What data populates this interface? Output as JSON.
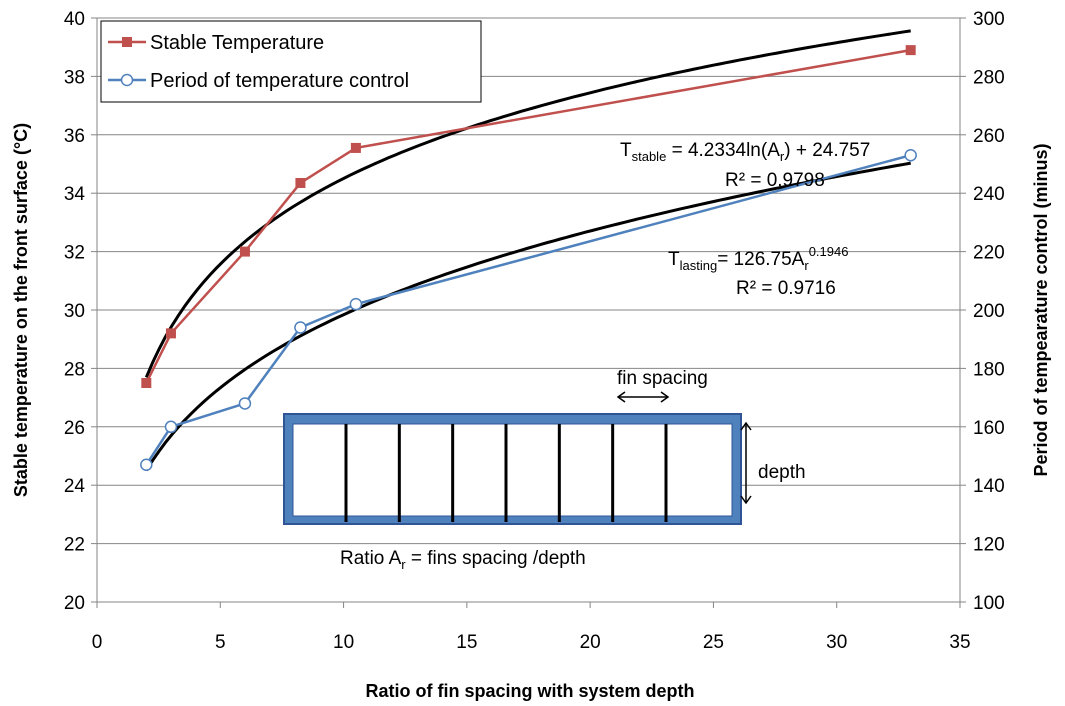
{
  "chart_data": {
    "type": "line",
    "xlabel": "Ratio of fin spacing with system depth",
    "ylabel_left": "Stable temperature on the front surface (°C)",
    "ylabel_right": "Period of tempearature control (minus)",
    "xlim": [
      0,
      35
    ],
    "ylim_left": [
      20,
      40
    ],
    "ylim_right": [
      100,
      300
    ],
    "x_ticks": [
      "0",
      "5",
      "10",
      "15",
      "20",
      "25",
      "30",
      "35"
    ],
    "y_left_ticks": [
      "20",
      "22",
      "24",
      "26",
      "28",
      "30",
      "32",
      "34",
      "36",
      "38",
      "40"
    ],
    "y_right_ticks": [
      "100",
      "120",
      "140",
      "160",
      "180",
      "200",
      "220",
      "240",
      "260",
      "280",
      "300"
    ],
    "grid": "horizontal",
    "legend_position": "top-left",
    "series": [
      {
        "name": "Stable Temperature",
        "axis": "left",
        "marker": "square",
        "color": "#C0504D",
        "x": [
          2,
          3,
          6,
          8.25,
          10.5,
          33
        ],
        "y": [
          27.5,
          29.2,
          32.0,
          34.35,
          35.55,
          38.9
        ]
      },
      {
        "name": "Period of temperature control",
        "axis": "right",
        "marker": "circle",
        "color": "#4F81BD",
        "x": [
          2,
          3,
          6,
          8.25,
          10.5,
          33
        ],
        "y": [
          147,
          160,
          168,
          194,
          202,
          253
        ]
      }
    ],
    "trendlines": [
      {
        "series": "Stable Temperature",
        "axis": "left",
        "kind": "log",
        "a": 4.2334,
        "b": 24.757,
        "x_range": [
          2,
          33
        ],
        "color": "#000000",
        "eq_main": "T",
        "eq_sub": "stable",
        "eq_rest": " = 4.2334ln(A",
        "eq_sub2": "r",
        "eq_end": ") + 24.757",
        "r2": "R² = 0.9798"
      },
      {
        "series": "Period of temperature control",
        "axis": "right",
        "kind": "power",
        "a": 126.75,
        "b": 0.1946,
        "x_range": [
          2,
          33
        ],
        "color": "#000000",
        "eq_main": "T",
        "eq_sub": "lasting",
        "eq_rest": "= 126.75A",
        "eq_sub2": "r",
        "eq_sup": "0.1946",
        "r2": "R² = 0.9716"
      }
    ],
    "inset": {
      "fin_spacing_label": "fin spacing",
      "depth_label": "depth",
      "ratio_pre": "Ratio A",
      "ratio_sub": "r",
      "ratio_post": " = fins spacing /depth",
      "fin_count": 7,
      "frame_color": "#4F81BD",
      "frame_stroke": "#2F5597"
    }
  }
}
